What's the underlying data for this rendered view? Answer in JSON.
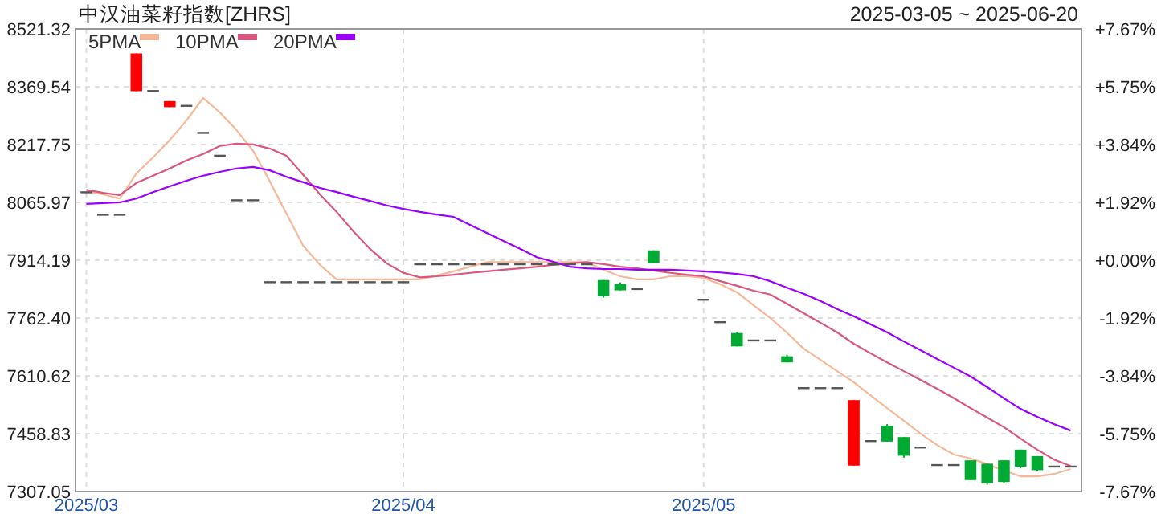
{
  "chart_data": {
    "type": "candlestick",
    "title": "中汉油菜籽指数[ZHRS]",
    "subtitle": "2025-03-05 ~ 2025-06-20",
    "categories": [
      "2025/03",
      null,
      null,
      null,
      null,
      null,
      null,
      null,
      null,
      null,
      null,
      null,
      null,
      null,
      null,
      null,
      null,
      null,
      null,
      "2025/04",
      null,
      null,
      null,
      null,
      null,
      null,
      null,
      null,
      null,
      null,
      null,
      null,
      null,
      null,
      null,
      null,
      null,
      "2025/05",
      null,
      null,
      null,
      null,
      null,
      null,
      null,
      null,
      null,
      null,
      null,
      null,
      null,
      null,
      null,
      null,
      null,
      null,
      null,
      null,
      null,
      null
    ],
    "ohlc": [
      [
        8095,
        8095,
        8095,
        8095
      ],
      [
        8036,
        8036,
        8036,
        8036
      ],
      [
        8036,
        8036,
        8036,
        8036
      ],
      [
        8358,
        8457,
        8358,
        8457
      ],
      [
        8361,
        8361,
        8361,
        8361
      ],
      [
        8316,
        8332,
        8316,
        8332
      ],
      [
        8322,
        8322,
        8322,
        8322
      ],
      [
        8251,
        8251,
        8251,
        8251
      ],
      [
        8191,
        8191,
        8191,
        8191
      ],
      [
        8074,
        8074,
        8074,
        8074
      ],
      [
        8074,
        8074,
        8074,
        8074
      ],
      [
        7859,
        7859,
        7859,
        7859
      ],
      [
        7859,
        7859,
        7859,
        7859
      ],
      [
        7859,
        7859,
        7859,
        7859
      ],
      [
        7859,
        7859,
        7859,
        7859
      ],
      [
        7859,
        7859,
        7859,
        7859
      ],
      [
        7859,
        7859,
        7859,
        7859
      ],
      [
        7859,
        7859,
        7859,
        7859
      ],
      [
        7859,
        7859,
        7859,
        7859
      ],
      [
        7859,
        7859,
        7859,
        7859
      ],
      [
        7906,
        7906,
        7906,
        7906
      ],
      [
        7906,
        7906,
        7906,
        7906
      ],
      [
        7906,
        7906,
        7906,
        7906
      ],
      [
        7906,
        7906,
        7906,
        7906
      ],
      [
        7906,
        7906,
        7906,
        7906
      ],
      [
        7906,
        7906,
        7906,
        7906
      ],
      [
        7906,
        7906,
        7906,
        7906
      ],
      [
        7906,
        7906,
        7906,
        7906
      ],
      [
        7906,
        7906,
        7906,
        7906
      ],
      [
        7906,
        7906,
        7906,
        7906
      ],
      [
        7906,
        7906,
        7906,
        7906
      ],
      [
        7862,
        7862,
        7816,
        7820
      ],
      [
        7852,
        7856,
        7835,
        7835
      ],
      [
        7841,
        7841,
        7841,
        7841
      ],
      [
        7940,
        7940,
        7906,
        7906
      ],
      null,
      null,
      [
        7813,
        7813,
        7813,
        7813
      ],
      [
        7754,
        7754,
        7754,
        7754
      ],
      [
        7723,
        7726,
        7688,
        7688
      ],
      [
        7706,
        7706,
        7706,
        7706
      ],
      [
        7706,
        7706,
        7706,
        7706
      ],
      [
        7662,
        7666,
        7646,
        7646
      ],
      [
        7581,
        7581,
        7581,
        7581
      ],
      [
        7581,
        7581,
        7581,
        7581
      ],
      [
        7581,
        7581,
        7581,
        7581
      ],
      [
        7375,
        7547,
        7375,
        7547
      ],
      [
        7442,
        7442,
        7442,
        7442
      ],
      [
        7480,
        7484,
        7438,
        7438
      ],
      [
        7450,
        7450,
        7396,
        7401
      ],
      [
        7425,
        7425,
        7425,
        7425
      ],
      [
        7379,
        7379,
        7379,
        7379
      ],
      [
        7379,
        7379,
        7379,
        7379
      ],
      [
        7389,
        7389,
        7337,
        7337
      ],
      [
        7380,
        7380,
        7325,
        7329
      ],
      [
        7389,
        7389,
        7328,
        7332
      ],
      [
        7417,
        7417,
        7368,
        7372
      ],
      [
        7400,
        7400,
        7360,
        7363
      ],
      [
        7375,
        7375,
        7375,
        7375
      ],
      [
        7375,
        7375,
        7375,
        7375
      ]
    ],
    "colors": [
      "#555555",
      "#555555",
      "#555555",
      "#ff0000",
      "#555555",
      "#ff0000",
      "#555555",
      "#555555",
      "#555555",
      "#555555",
      "#555555",
      "#555555",
      "#555555",
      "#555555",
      "#555555",
      "#555555",
      "#555555",
      "#555555",
      "#555555",
      "#555555",
      "#555555",
      "#555555",
      "#555555",
      "#555555",
      "#555555",
      "#555555",
      "#555555",
      "#555555",
      "#555555",
      "#555555",
      "#555555",
      "#00aa33",
      "#00aa33",
      "#555555",
      "#00aa33",
      null,
      null,
      "#555555",
      "#555555",
      "#00aa33",
      "#555555",
      "#555555",
      "#00aa33",
      "#555555",
      "#555555",
      "#555555",
      "#ff0000",
      "#555555",
      "#00aa33",
      "#00aa33",
      "#555555",
      "#555555",
      "#555555",
      "#00aa33",
      "#00aa33",
      "#00aa33",
      "#00aa33",
      "#00aa33",
      "#555555",
      "#555555"
    ],
    "series": [
      {
        "name": "5PMA",
        "type": "line",
        "color": "#f7b899",
        "values": [
          8095,
          8087,
          8076,
          8142,
          8184,
          8230,
          8281,
          8340,
          8302,
          8256,
          8201,
          8121,
          8036,
          7952,
          7902,
          7864,
          7864,
          7864,
          7864,
          7864,
          7864,
          7874,
          7885,
          7897,
          7909,
          7909,
          7909,
          7909,
          7909,
          7909,
          7909,
          7889,
          7872,
          7864,
          7864,
          7872,
          7873,
          7868,
          7851,
          7830,
          7796,
          7762,
          7724,
          7682,
          7653,
          7623,
          7594,
          7560,
          7526,
          7493,
          7459,
          7429,
          7404,
          7394,
          7379,
          7362,
          7347,
          7347,
          7353,
          7366
        ]
      },
      {
        "name": "10PMA",
        "type": "line",
        "color": "#d9577f",
        "values": [
          8099,
          8091,
          8085,
          8117,
          8136,
          8155,
          8176,
          8193,
          8214,
          8220,
          8218,
          8207,
          8188,
          8138,
          8087,
          8041,
          7990,
          7944,
          7906,
          7881,
          7869,
          7872,
          7876,
          7881,
          7885,
          7889,
          7893,
          7897,
          7902,
          7906,
          7909,
          7904,
          7897,
          7893,
          7887,
          7881,
          7876,
          7872,
          7859,
          7847,
          7834,
          7824,
          7800,
          7775,
          7750,
          7725,
          7695,
          7670,
          7646,
          7623,
          7600,
          7577,
          7552,
          7526,
          7501,
          7476,
          7446,
          7417,
          7391,
          7374
        ]
      },
      {
        "name": "20PMA",
        "type": "line",
        "color": "#9900ff",
        "values": [
          8062,
          8064,
          8066,
          8076,
          8093,
          8108,
          8123,
          8136,
          8146,
          8155,
          8159,
          8150,
          8133,
          8119,
          8104,
          8093,
          8081,
          8070,
          8058,
          8049,
          8041,
          8034,
          8028,
          8007,
          7986,
          7965,
          7944,
          7922,
          7910,
          7897,
          7893,
          7891,
          7891,
          7889,
          7889,
          7889,
          7887,
          7885,
          7882,
          7878,
          7872,
          7859,
          7842,
          7826,
          7807,
          7786,
          7767,
          7746,
          7725,
          7701,
          7678,
          7655,
          7632,
          7609,
          7581,
          7552,
          7524,
          7503,
          7484,
          7467
        ]
      }
    ],
    "ylim": [
      7307.05,
      8521.32
    ],
    "yticks": [
      7307.05,
      7458.83,
      7610.62,
      {
        "value": 7762.4,
        "label": "7762.40"
      },
      7914.19,
      8065.97,
      8217.75,
      8369.54,
      8521.32
    ],
    "y2lim": [
      -7.67,
      7.67
    ],
    "y2ticks": [
      {
        "value": -7.67,
        "label": "-7.67%"
      },
      {
        "value": -5.75,
        "label": "-5.75%"
      },
      {
        "value": -3.84,
        "label": "-3.84%"
      },
      {
        "value": -1.92,
        "label": "-1.92%"
      },
      {
        "value": 0,
        "label": "+0.00%"
      },
      {
        "value": 1.92,
        "label": "+1.92%"
      },
      {
        "value": 3.84,
        "label": "+3.84%"
      },
      {
        "value": 5.75,
        "label": "+5.75%"
      },
      {
        "value": 7.67,
        "label": "+7.67%"
      }
    ],
    "grid": true,
    "legend": "top left"
  }
}
